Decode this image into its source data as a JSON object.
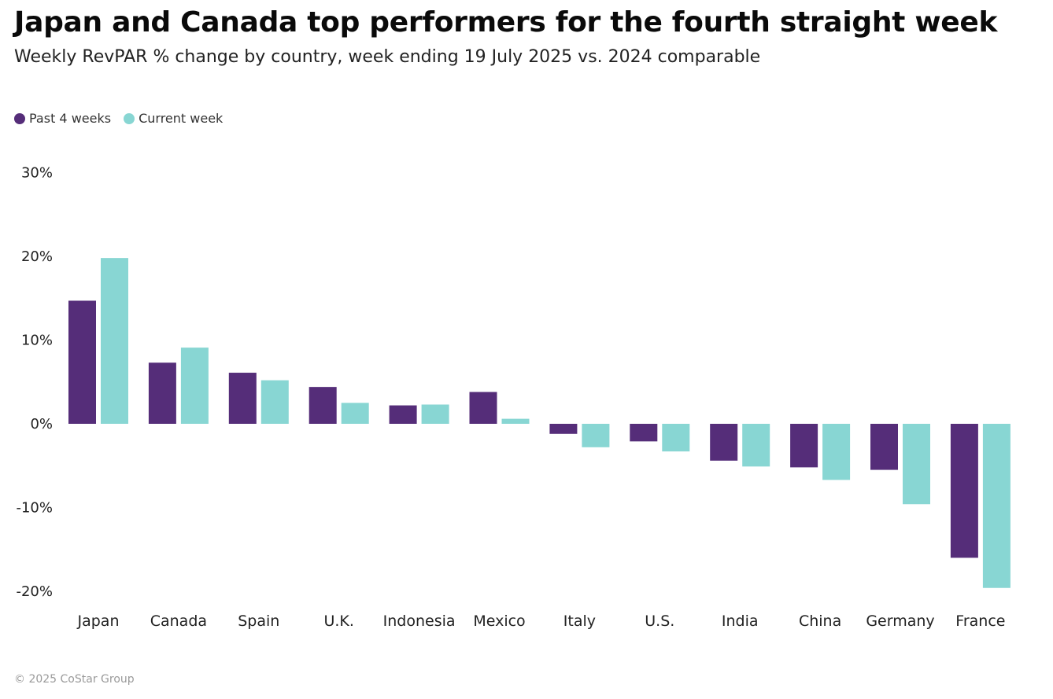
{
  "header": {
    "title": "Japan and Canada top performers for the fourth straight week",
    "subtitle": "Weekly RevPAR % change by country, week ending 19 July 2025 vs. 2024 comparable"
  },
  "legend": [
    {
      "label": "Past 4 weeks",
      "color": "#552D79"
    },
    {
      "label": "Current week",
      "color": "#88D6D3"
    }
  ],
  "footer": {
    "copyright": "© 2025 CoStar Group"
  },
  "chart_data": {
    "type": "bar",
    "title": "Japan and Canada top performers for the fourth straight week",
    "subtitle": "Weekly RevPAR % change by country, week ending 19 July 2025 vs. 2024 comparable",
    "xlabel": "",
    "ylabel": "",
    "ylim": [
      -20,
      30
    ],
    "yticks": [
      30,
      20,
      10,
      0,
      -10,
      -20
    ],
    "ytick_labels": [
      "30%",
      "20%",
      "10%",
      "0%",
      "-10%",
      "-20%"
    ],
    "grid": false,
    "legend_position": "top-left",
    "categories": [
      "Japan",
      "Canada",
      "Spain",
      "U.K.",
      "Indonesia",
      "Mexico",
      "Italy",
      "U.S.",
      "India",
      "China",
      "Germany",
      "France"
    ],
    "series": [
      {
        "name": "Past 4 weeks",
        "color": "#552D79",
        "values": [
          14.7,
          7.3,
          6.1,
          4.4,
          2.2,
          3.8,
          -1.2,
          -2.1,
          -4.4,
          -5.2,
          -5.5,
          -16.0
        ]
      },
      {
        "name": "Current week",
        "color": "#88D6D3",
        "values": [
          19.8,
          9.1,
          5.2,
          2.5,
          2.3,
          0.6,
          -2.8,
          -3.3,
          -5.1,
          -6.7,
          -9.6,
          -19.6
        ]
      }
    ]
  }
}
